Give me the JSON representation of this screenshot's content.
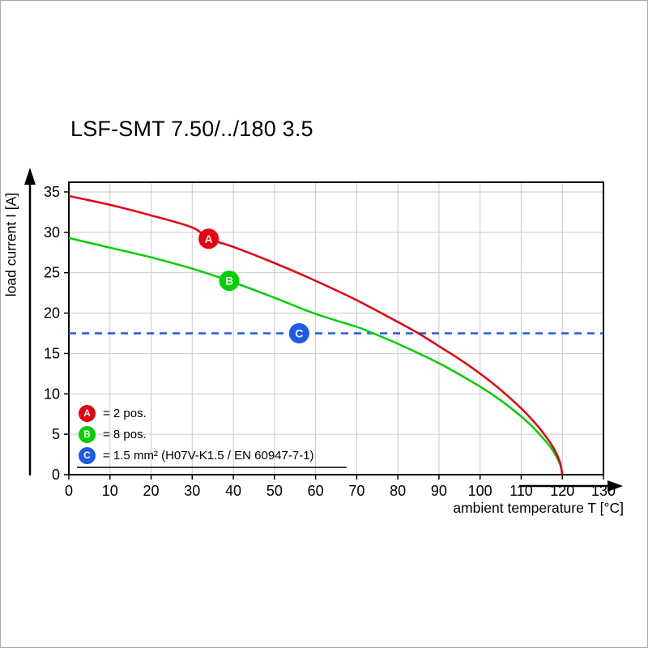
{
  "page": {
    "title": "LSF-SMT 7.50/../180 3.5"
  },
  "chart_data": {
    "type": "line",
    "title": "LSF-SMT 7.50/../180 3.5",
    "xlabel": "ambient temperature T [°C]",
    "ylabel": "load current I [A]",
    "xlim": [
      0,
      130
    ],
    "ylim": [
      0,
      36.2
    ],
    "x_ticks": [
      0,
      10,
      20,
      30,
      40,
      50,
      60,
      70,
      80,
      90,
      100,
      110,
      120,
      130
    ],
    "y_ticks": [
      0,
      5,
      10,
      15,
      20,
      25,
      30,
      35
    ],
    "grid": true,
    "grid_color": "#c9c9c9",
    "axis_color": "#000000",
    "legend_position": "bottom-left-inside",
    "series": [
      {
        "name": "2 pos.",
        "color": "#e60011",
        "style": "solid",
        "marker": {
          "label": "A",
          "x": 34,
          "y": 29.2
        },
        "points": [
          [
            0,
            34.5
          ],
          [
            10,
            33.4
          ],
          [
            20,
            32.1
          ],
          [
            30,
            30.6
          ],
          [
            34,
            29.2
          ],
          [
            40,
            28.2
          ],
          [
            50,
            26.2
          ],
          [
            60,
            24.0
          ],
          [
            70,
            21.6
          ],
          [
            80,
            18.9
          ],
          [
            85,
            17.5
          ],
          [
            90,
            15.9
          ],
          [
            95,
            14.3
          ],
          [
            100,
            12.5
          ],
          [
            105,
            10.5
          ],
          [
            110,
            8.2
          ],
          [
            113,
            6.6
          ],
          [
            115,
            5.4
          ],
          [
            117,
            4.0
          ],
          [
            118.5,
            2.7
          ],
          [
            119.5,
            1.4
          ],
          [
            120,
            0
          ]
        ]
      },
      {
        "name": "8 pos.",
        "color": "#00cf00",
        "style": "solid",
        "marker": {
          "label": "B",
          "x": 39,
          "y": 24
        },
        "points": [
          [
            0,
            29.3
          ],
          [
            10,
            28.1
          ],
          [
            20,
            26.9
          ],
          [
            30,
            25.5
          ],
          [
            39,
            24.0
          ],
          [
            50,
            21.9
          ],
          [
            60,
            19.9
          ],
          [
            70,
            18.3
          ],
          [
            74,
            17.5
          ],
          [
            80,
            16.2
          ],
          [
            90,
            13.8
          ],
          [
            100,
            10.9
          ],
          [
            105,
            9.2
          ],
          [
            110,
            7.2
          ],
          [
            113,
            5.8
          ],
          [
            115,
            4.7
          ],
          [
            117,
            3.5
          ],
          [
            118.5,
            2.3
          ],
          [
            119.5,
            1.2
          ],
          [
            120,
            0
          ]
        ]
      },
      {
        "name": "1.5 mm² (H07V-K1.5 / EN 60947-7-1)",
        "color": "#1d5be8",
        "style": "dashed",
        "marker": {
          "label": "C",
          "x": 56,
          "y": 17.5
        },
        "points": [
          [
            0,
            17.5
          ],
          [
            130,
            17.5
          ]
        ]
      }
    ],
    "legend": [
      {
        "label": "A",
        "color": "#e60011",
        "text": "= 2 pos."
      },
      {
        "label": "B",
        "color": "#00cf00",
        "text": "= 8 pos."
      },
      {
        "label": "C",
        "color": "#1d5be8",
        "text": "= 1.5 mm² (H07V-K1.5 / EN 60947-7-1)"
      }
    ]
  }
}
